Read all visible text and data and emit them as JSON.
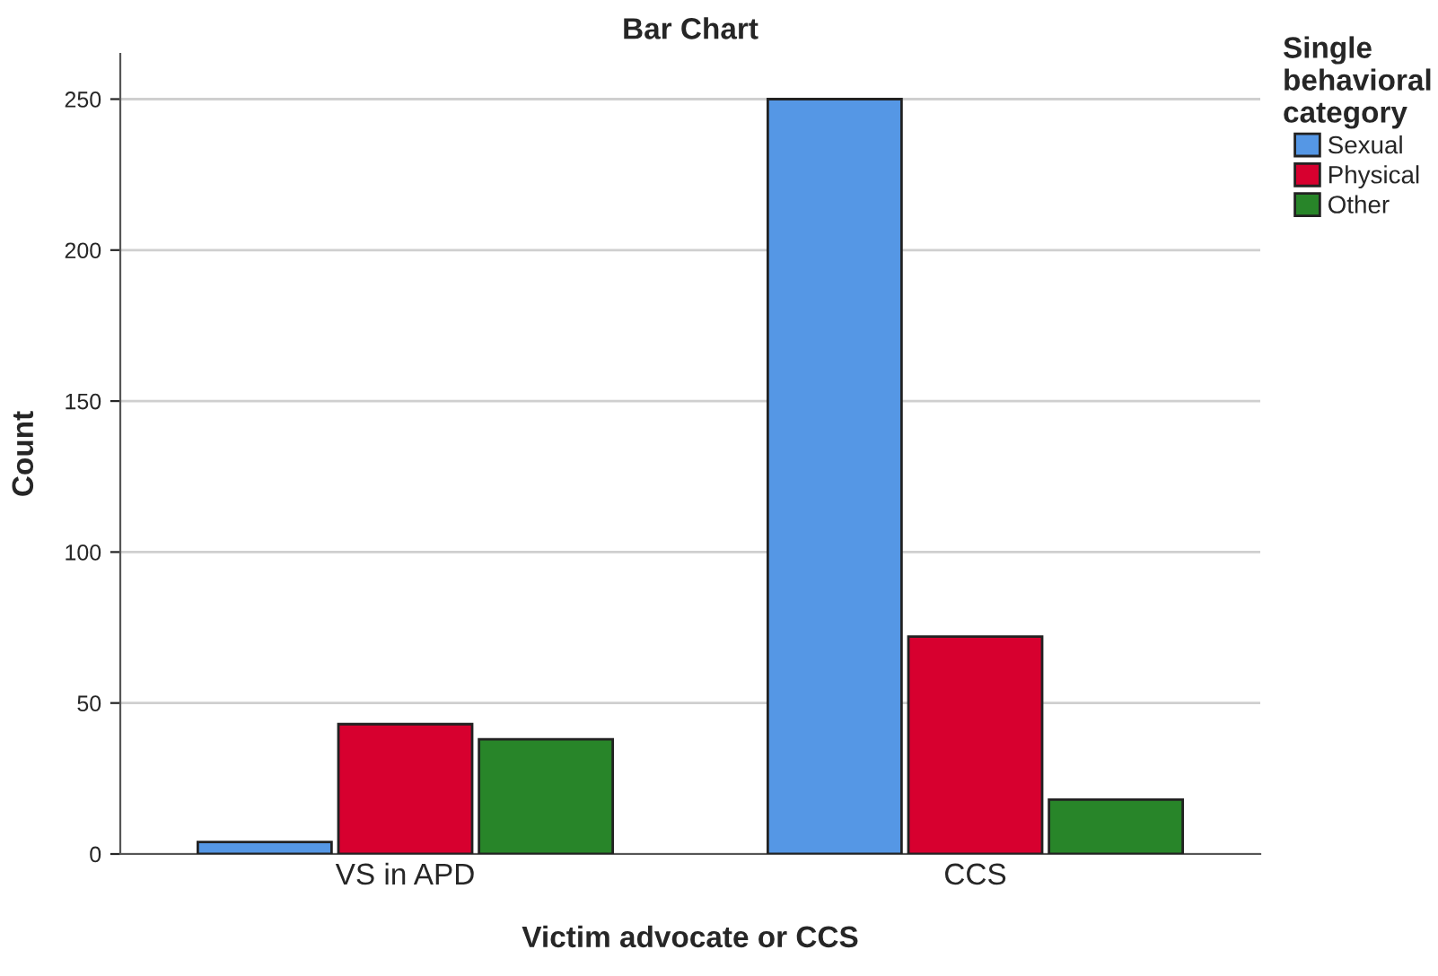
{
  "chart_data": {
    "type": "bar",
    "title": "Bar Chart",
    "xlabel": "Victim advocate or CCS",
    "ylabel": "Count",
    "legend_title": "Single\nbehavioral\ncategory",
    "categories": [
      "VS in APD",
      "CCS"
    ],
    "series": [
      {
        "name": "Sexual",
        "color": "#5597e5",
        "values": [
          4,
          250
        ]
      },
      {
        "name": "Physical",
        "color": "#d7002f",
        "values": [
          43,
          72
        ]
      },
      {
        "name": "Other",
        "color": "#288529",
        "values": [
          38,
          18
        ]
      }
    ],
    "ylim": [
      0,
      265
    ],
    "yticks": [
      0,
      50,
      100,
      150,
      200,
      250
    ],
    "grid": "y",
    "legend": "top right"
  }
}
